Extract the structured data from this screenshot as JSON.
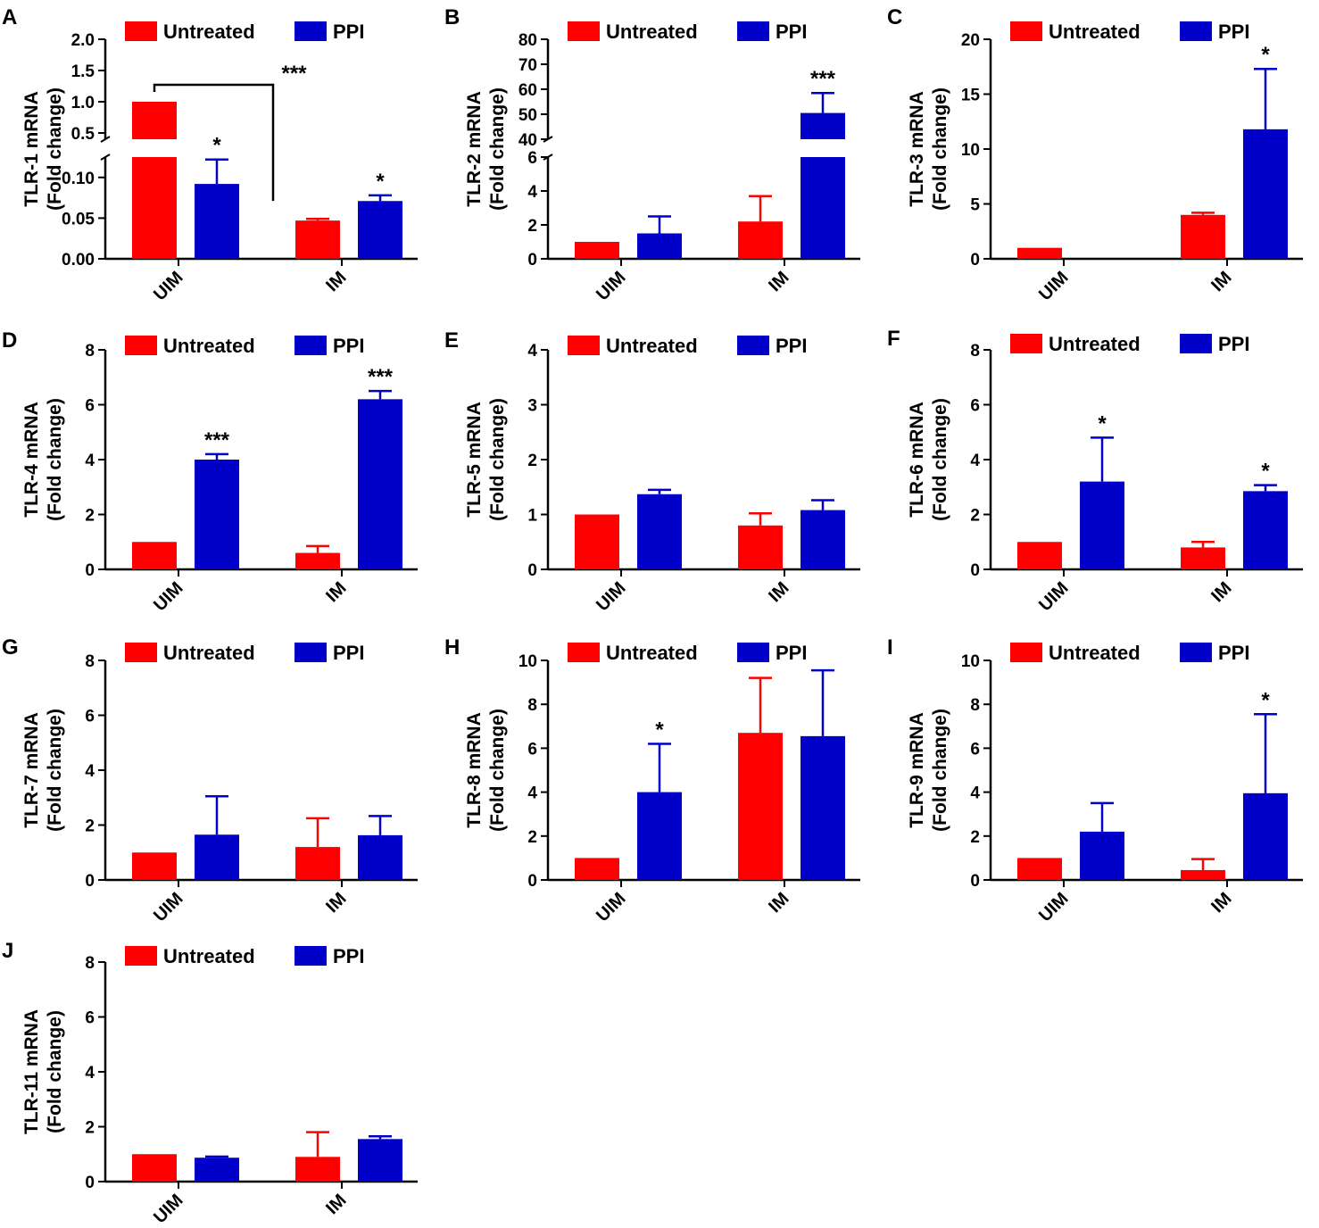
{
  "chart_data": [
    {
      "panel": "A",
      "type": "bar",
      "broken_axis": true,
      "ylabel": [
        "TLR-1 mRNA",
        "(Fold change)"
      ],
      "categories": [
        "UIM",
        "IM"
      ],
      "legend": [
        "Untreated",
        "PPI"
      ],
      "colors": [
        "#ff0000",
        "#0000c8"
      ],
      "series": [
        {
          "name": "Untreated",
          "values": [
            1.0,
            0.047
          ],
          "errors": [
            0,
            0.002
          ]
        },
        {
          "name": "PPI",
          "values": [
            0.092,
            0.071
          ],
          "errors": [
            0.03,
            0.007
          ]
        }
      ],
      "lower_ylim": [
        0,
        0.125
      ],
      "lower_ticks": [
        "0.00",
        "0.05",
        "0.10"
      ],
      "upper_ylim": [
        0.4,
        2.0
      ],
      "upper_ticks": [
        "0.5",
        "1.0",
        "1.5",
        "2.0"
      ],
      "significance": [
        {
          "series": 1,
          "category": 0,
          "text": "*"
        },
        {
          "series": 1,
          "category": 1,
          "text": "*"
        }
      ],
      "bracket": {
        "text": "***"
      }
    },
    {
      "panel": "B",
      "type": "bar",
      "broken_axis": true,
      "ylabel": [
        "TLR-2 mRNA",
        "(Fold change)"
      ],
      "categories": [
        "UIM",
        "IM"
      ],
      "legend": [
        "Untreated",
        "PPI"
      ],
      "colors": [
        "#ff0000",
        "#0000c8"
      ],
      "series": [
        {
          "name": "Untreated",
          "values": [
            1.0,
            2.2
          ],
          "errors": [
            0,
            1.5
          ]
        },
        {
          "name": "PPI",
          "values": [
            1.5,
            50.5
          ],
          "errors": [
            1.0,
            8.0
          ]
        }
      ],
      "lower_ylim": [
        0,
        6
      ],
      "lower_ticks": [
        "0",
        "2",
        "4",
        "6"
      ],
      "upper_ylim": [
        40,
        80
      ],
      "upper_ticks": [
        "40",
        "50",
        "60",
        "70",
        "80"
      ],
      "significance": [
        {
          "series": 1,
          "category": 1,
          "text": "***"
        }
      ]
    },
    {
      "panel": "C",
      "type": "bar",
      "ylabel": [
        "TLR-3 mRNA",
        "(Fold change)"
      ],
      "categories": [
        "UIM",
        "IM"
      ],
      "legend": [
        "Untreated",
        "PPI"
      ],
      "colors": [
        "#ff0000",
        "#0000c8"
      ],
      "series": [
        {
          "name": "Untreated",
          "values": [
            1.0,
            4.0
          ],
          "errors": [
            0,
            0.2
          ]
        },
        {
          "name": "PPI",
          "values": [
            0,
            11.8
          ],
          "errors": [
            0,
            5.5
          ]
        }
      ],
      "ylim": [
        0,
        20
      ],
      "yticks": [
        "0",
        "5",
        "10",
        "15",
        "20"
      ],
      "significance": [
        {
          "series": 1,
          "category": 1,
          "text": "*"
        }
      ]
    },
    {
      "panel": "D",
      "type": "bar",
      "ylabel": [
        "TLR-4 mRNA",
        "(Fold change)"
      ],
      "categories": [
        "UIM",
        "IM"
      ],
      "legend": [
        "Untreated",
        "PPI"
      ],
      "colors": [
        "#ff0000",
        "#0000c8"
      ],
      "series": [
        {
          "name": "Untreated",
          "values": [
            1.0,
            0.6
          ],
          "errors": [
            0,
            0.25
          ]
        },
        {
          "name": "PPI",
          "values": [
            4.0,
            6.2
          ],
          "errors": [
            0.2,
            0.3
          ]
        }
      ],
      "ylim": [
        0,
        8
      ],
      "yticks": [
        "0",
        "2",
        "4",
        "6",
        "8"
      ],
      "significance": [
        {
          "series": 1,
          "category": 0,
          "text": "***"
        },
        {
          "series": 1,
          "category": 1,
          "text": "***"
        }
      ]
    },
    {
      "panel": "E",
      "type": "bar",
      "ylabel": [
        "TLR-5 mRNA",
        "(Fold change)"
      ],
      "categories": [
        "UIM",
        "IM"
      ],
      "legend": [
        "Untreated",
        "PPI"
      ],
      "colors": [
        "#ff0000",
        "#0000c8"
      ],
      "series": [
        {
          "name": "Untreated",
          "values": [
            1.0,
            0.8
          ],
          "errors": [
            0,
            0.22
          ]
        },
        {
          "name": "PPI",
          "values": [
            1.37,
            1.08
          ],
          "errors": [
            0.08,
            0.18
          ]
        }
      ],
      "ylim": [
        0,
        4
      ],
      "yticks": [
        "0",
        "1",
        "2",
        "3",
        "4"
      ],
      "significance": []
    },
    {
      "panel": "F",
      "type": "bar",
      "ylabel": [
        "TLR-6 mRNA",
        "(Fold change)"
      ],
      "categories": [
        "UIM",
        "IM"
      ],
      "legend": [
        "Untreated",
        "PPI"
      ],
      "colors": [
        "#ff0000",
        "#0000c8"
      ],
      "series": [
        {
          "name": "Untreated",
          "values": [
            1.0,
            0.8
          ],
          "errors": [
            0,
            0.2
          ]
        },
        {
          "name": "PPI",
          "values": [
            3.2,
            2.85
          ],
          "errors": [
            1.6,
            0.22
          ]
        }
      ],
      "ylim": [
        0,
        8
      ],
      "yticks": [
        "0",
        "2",
        "4",
        "6",
        "8"
      ],
      "significance": [
        {
          "series": 1,
          "category": 0,
          "text": "*"
        },
        {
          "series": 1,
          "category": 1,
          "text": "*"
        }
      ]
    },
    {
      "panel": "G",
      "type": "bar",
      "ylabel": [
        "TLR-7 mRNA",
        "(Fold change)"
      ],
      "categories": [
        "UIM",
        "IM"
      ],
      "legend": [
        "Untreated",
        "PPI"
      ],
      "colors": [
        "#ff0000",
        "#0000c8"
      ],
      "series": [
        {
          "name": "Untreated",
          "values": [
            1.0,
            1.2
          ],
          "errors": [
            0,
            1.05
          ]
        },
        {
          "name": "PPI",
          "values": [
            1.65,
            1.63
          ],
          "errors": [
            1.4,
            0.7
          ]
        }
      ],
      "ylim": [
        0,
        8
      ],
      "yticks": [
        "0",
        "2",
        "4",
        "6",
        "8"
      ],
      "significance": []
    },
    {
      "panel": "H",
      "type": "bar",
      "ylabel": [
        "TLR-8 mRNA",
        "(Fold change)"
      ],
      "categories": [
        "UIM",
        "IM"
      ],
      "legend": [
        "Untreated",
        "PPI"
      ],
      "colors": [
        "#ff0000",
        "#0000c8"
      ],
      "series": [
        {
          "name": "Untreated",
          "values": [
            1.0,
            6.7
          ],
          "errors": [
            0,
            2.5
          ]
        },
        {
          "name": "PPI",
          "values": [
            4.0,
            6.55
          ],
          "errors": [
            2.2,
            3.0
          ]
        }
      ],
      "ylim": [
        0,
        10
      ],
      "yticks": [
        "0",
        "2",
        "4",
        "6",
        "8",
        "10"
      ],
      "significance": [
        {
          "series": 1,
          "category": 0,
          "text": "*"
        }
      ]
    },
    {
      "panel": "I",
      "type": "bar",
      "ylabel": [
        "TLR-9 mRNA",
        "(Fold change)"
      ],
      "categories": [
        "UIM",
        "IM"
      ],
      "legend": [
        "Untreated",
        "PPI"
      ],
      "colors": [
        "#ff0000",
        "#0000c8"
      ],
      "series": [
        {
          "name": "Untreated",
          "values": [
            1.0,
            0.45
          ],
          "errors": [
            0,
            0.5
          ]
        },
        {
          "name": "PPI",
          "values": [
            2.2,
            3.95
          ],
          "errors": [
            1.3,
            3.6
          ]
        }
      ],
      "ylim": [
        0,
        10
      ],
      "yticks": [
        "0",
        "2",
        "4",
        "6",
        "8",
        "10"
      ],
      "significance": [
        {
          "series": 1,
          "category": 1,
          "text": "*"
        }
      ]
    },
    {
      "panel": "J",
      "type": "bar",
      "ylabel": [
        "TLR-11 mRNA",
        "(Fold change)"
      ],
      "categories": [
        "UIM",
        "IM"
      ],
      "legend": [
        "Untreated",
        "PPI"
      ],
      "colors": [
        "#ff0000",
        "#0000c8"
      ],
      "series": [
        {
          "name": "Untreated",
          "values": [
            1.0,
            0.9
          ],
          "errors": [
            0,
            0.9
          ]
        },
        {
          "name": "PPI",
          "values": [
            0.87,
            1.55
          ],
          "errors": [
            0.04,
            0.1
          ]
        }
      ],
      "ylim": [
        0,
        8
      ],
      "yticks": [
        "0",
        "2",
        "4",
        "6",
        "8"
      ],
      "significance": []
    }
  ]
}
